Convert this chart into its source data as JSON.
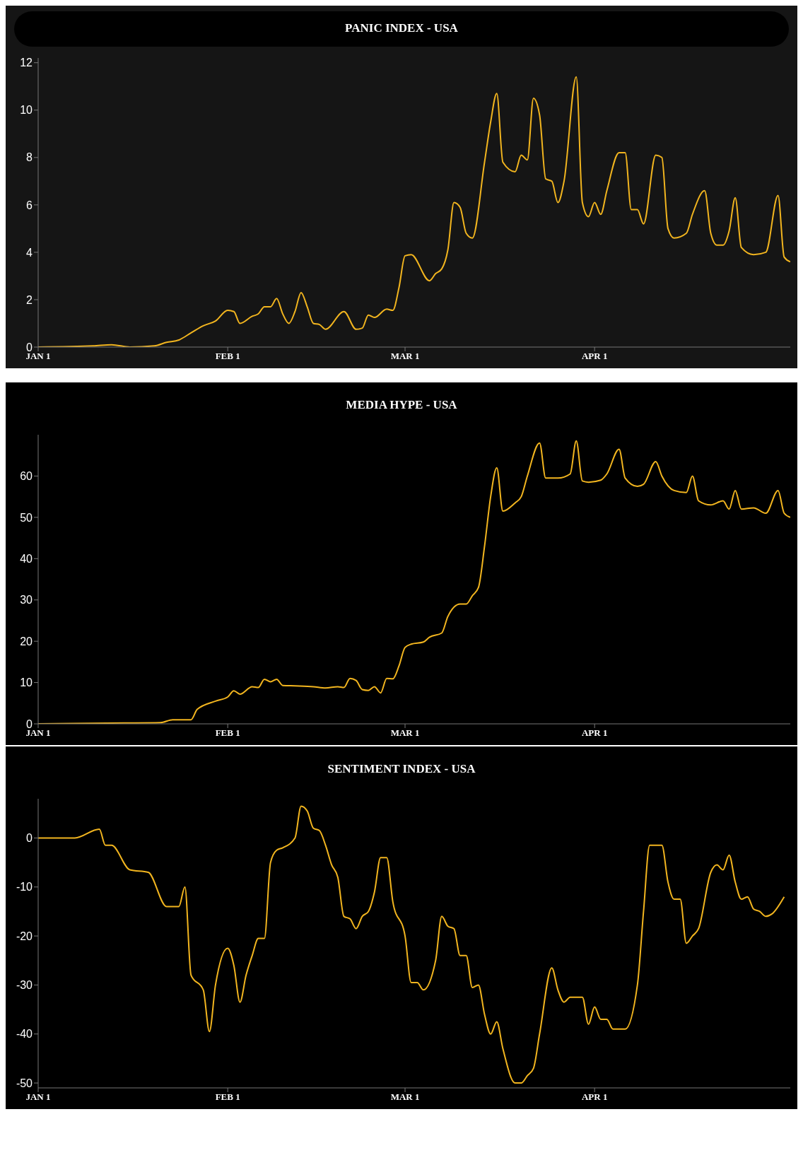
{
  "chart_data": [
    {
      "type": "line",
      "title": "PANIC INDEX - USA",
      "color": "#f2b51f",
      "xlim": [
        "--01-01",
        "--05-03"
      ],
      "ylim": [
        0,
        12.2
      ],
      "yticks": [
        0,
        2,
        4,
        6,
        8,
        10,
        12
      ],
      "xticks": [
        {
          "value": "--01-01",
          "label": "JAN 1"
        },
        {
          "value": "--02-01",
          "label": "FEB 1"
        },
        {
          "value": "--03-01",
          "label": "MAR 1"
        },
        {
          "value": "--04-01",
          "label": "APR 1"
        }
      ],
      "x": [
        "--01-01",
        "--01-10",
        "--01-13",
        "--01-16",
        "--01-20",
        "--01-22",
        "--01-24",
        "--01-26",
        "--01-28",
        "--01-30",
        "--02-01",
        "--02-02",
        "--02-03",
        "--02-05",
        "--02-06",
        "--02-07",
        "--02-08",
        "--02-09",
        "--02-10",
        "--02-11",
        "--02-12",
        "--02-13",
        "--02-14",
        "--02-15",
        "--02-16",
        "--02-17",
        "--02-20",
        "--02-22",
        "--02-23",
        "--02-24",
        "--02-25",
        "--02-27",
        "--02-28",
        "--02-29",
        "--03-01",
        "--03-02",
        "--03-05",
        "--03-06",
        "--03-07",
        "--03-08",
        "--03-09",
        "--03-10",
        "--03-11",
        "--03-12",
        "--03-14",
        "--03-15",
        "--03-16",
        "--03-17",
        "--03-19",
        "--03-20",
        "--03-21",
        "--03-22",
        "--03-23",
        "--03-24",
        "--03-25",
        "--03-26",
        "--03-27",
        "--03-29",
        "--03-30",
        "--03-31",
        "--04-01",
        "--04-02",
        "--04-03",
        "--04-05",
        "--04-06",
        "--04-07",
        "--04-08",
        "--04-09",
        "--04-11",
        "--04-12",
        "--04-13",
        "--04-14",
        "--04-16",
        "--04-17",
        "--04-19",
        "--04-20",
        "--04-21",
        "--04-22",
        "--04-23",
        "--04-24",
        "--04-25",
        "--04-27",
        "--04-29",
        "--05-01",
        "--05-02",
        "--05-03"
      ],
      "values": [
        0,
        0.05,
        0.1,
        0,
        0.05,
        0.2,
        0.3,
        0.6,
        0.9,
        1.1,
        1.55,
        1.5,
        1.0,
        1.3,
        1.4,
        1.7,
        1.7,
        2.05,
        1.4,
        1.0,
        1.5,
        2.3,
        1.7,
        1.0,
        0.95,
        0.75,
        1.5,
        0.75,
        0.8,
        1.35,
        1.25,
        1.6,
        1.55,
        2.5,
        3.85,
        3.9,
        2.8,
        3.1,
        3.3,
        4.1,
        6.1,
        5.9,
        4.8,
        4.6,
        7.8,
        9.5,
        10.7,
        7.8,
        7.4,
        8.1,
        7.9,
        10.5,
        9.8,
        7.1,
        7.0,
        6.1,
        7.0,
        11.4,
        6.1,
        5.5,
        6.1,
        5.6,
        6.6,
        8.2,
        8.2,
        5.8,
        5.8,
        5.2,
        8.1,
        8.0,
        5.0,
        4.6,
        4.8,
        5.6,
        6.6,
        4.8,
        4.3,
        4.3,
        4.9,
        6.3,
        4.2,
        3.9,
        4.0,
        6.4,
        3.8,
        3.6
      ]
    },
    {
      "type": "line",
      "title": "MEDIA HYPE - USA",
      "color": "#f2b51f",
      "xlim": [
        "--01-01",
        "--05-03"
      ],
      "ylim": [
        0,
        70
      ],
      "yticks": [
        0,
        10,
        20,
        30,
        40,
        50,
        60
      ],
      "xticks": [
        {
          "value": "--01-01",
          "label": "JAN 1"
        },
        {
          "value": "--02-01",
          "label": "FEB 1"
        },
        {
          "value": "--03-01",
          "label": "MAR 1"
        },
        {
          "value": "--04-01",
          "label": "APR 1"
        }
      ],
      "x": [
        "--01-01",
        "--01-15",
        "--01-21",
        "--01-23",
        "--01-26",
        "--01-27",
        "--01-30",
        "--02-01",
        "--02-02",
        "--02-03",
        "--02-05",
        "--02-06",
        "--02-07",
        "--02-08",
        "--02-09",
        "--02-10",
        "--02-12",
        "--02-15",
        "--02-17",
        "--02-19",
        "--02-20",
        "--02-21",
        "--02-22",
        "--02-23",
        "--02-24",
        "--02-25",
        "--02-26",
        "--02-27",
        "--02-28",
        "--02-29",
        "--03-01",
        "--03-02",
        "--03-04",
        "--03-05",
        "--03-07",
        "--03-08",
        "--03-10",
        "--03-11",
        "--03-12",
        "--03-13",
        "--03-14",
        "--03-15",
        "--03-16",
        "--03-17",
        "--03-19",
        "--03-20",
        "--03-21",
        "--03-23",
        "--03-24",
        "--03-26",
        "--03-28",
        "--03-29",
        "--03-30",
        "--03-31",
        "--04-02",
        "--04-03",
        "--04-05",
        "--04-06",
        "--04-08",
        "--04-09",
        "--04-11",
        "--04-12",
        "--04-14",
        "--04-16",
        "--04-17",
        "--04-18",
        "--04-20",
        "--04-22",
        "--04-23",
        "--04-24",
        "--04-25",
        "--04-27",
        "--04-29",
        "--05-01",
        "--05-02",
        "--05-03"
      ],
      "values": [
        0,
        0.2,
        0.3,
        1.0,
        1.0,
        3.5,
        5.5,
        6.5,
        8,
        7.2,
        9,
        8.8,
        10.8,
        10.2,
        10.8,
        9.3,
        9.2,
        9.0,
        8.7,
        9.0,
        8.8,
        11.0,
        10.5,
        8.3,
        8.1,
        9.0,
        7.5,
        11,
        10.9,
        14,
        18.5,
        19.3,
        19.8,
        21,
        22,
        26,
        29,
        29,
        31,
        33,
        43,
        55,
        62,
        51.5,
        53.5,
        55,
        60,
        68,
        59.5,
        59.5,
        60.5,
        68.5,
        58.8,
        58.5,
        59,
        60.5,
        66.5,
        59.5,
        57.5,
        58,
        63.5,
        60,
        56.5,
        56,
        60,
        54,
        53,
        54,
        52,
        56.5,
        52,
        52.3,
        51,
        56.5,
        51,
        50
      ]
    },
    {
      "type": "line",
      "title": "SENTIMENT INDEX - USA",
      "color": "#f2b51f",
      "xlim": [
        "--01-01",
        "--05-03"
      ],
      "ylim": [
        -51,
        8
      ],
      "yticks": [
        -50,
        -40,
        -30,
        -20,
        -10,
        0
      ],
      "xticks": [
        {
          "value": "--01-01",
          "label": "JAN 1"
        },
        {
          "value": "--02-01",
          "label": "FEB 1"
        },
        {
          "value": "--03-01",
          "label": "MAR 1"
        },
        {
          "value": "--04-01",
          "label": "APR 1"
        }
      ],
      "x": [
        "--01-01",
        "--01-07",
        "--01-11",
        "--01-12",
        "--01-13",
        "--01-16",
        "--01-19",
        "--01-22",
        "--01-24",
        "--01-25",
        "--01-26",
        "--01-28",
        "--01-29",
        "--01-30",
        "--02-01",
        "--02-02",
        "--02-03",
        "--02-04",
        "--02-05",
        "--02-06",
        "--02-07",
        "--02-08",
        "--02-09",
        "--02-10",
        "--02-12",
        "--02-13",
        "--02-14",
        "--02-15",
        "--02-16",
        "--02-17",
        "--02-18",
        "--02-19",
        "--02-20",
        "--02-21",
        "--02-22",
        "--02-23",
        "--02-24",
        "--02-25",
        "--02-26",
        "--02-27",
        "--02-28",
        "--03-01",
        "--03-02",
        "--03-03",
        "--03-04",
        "--03-06",
        "--03-07",
        "--03-08",
        "--03-09",
        "--03-10",
        "--03-11",
        "--03-12",
        "--03-13",
        "--03-14",
        "--03-15",
        "--03-16",
        "--03-17",
        "--03-19",
        "--03-20",
        "--03-21",
        "--03-22",
        "--03-23",
        "--03-25",
        "--03-26",
        "--03-27",
        "--03-28",
        "--03-30",
        "--03-31",
        "--04-01",
        "--04-02",
        "--04-03",
        "--04-04",
        "--04-06",
        "--04-08",
        "--04-09",
        "--04-10",
        "--04-12",
        "--04-13",
        "--04-14",
        "--04-15",
        "--04-16",
        "--04-17",
        "--04-18",
        "--04-20",
        "--04-21",
        "--04-22",
        "--04-23",
        "--04-24",
        "--04-25",
        "--04-26",
        "--04-27",
        "--04-28",
        "--04-29",
        "--04-30",
        "--05-02"
      ],
      "values": [
        0,
        0,
        1.8,
        -1.5,
        -1.5,
        -6.5,
        -7,
        -14,
        -14,
        -10,
        -28,
        -31,
        -39.5,
        -30,
        -22.5,
        -26,
        -33.5,
        -28,
        -24,
        -20.5,
        -20.5,
        -5,
        -2.5,
        -2,
        0,
        6.5,
        5.5,
        2,
        1.5,
        -1.5,
        -5.5,
        -8,
        -16,
        -16.5,
        -18.5,
        -16,
        -15,
        -11,
        -4,
        -4,
        -13,
        -20,
        -29.5,
        -29.5,
        -31,
        -25,
        -16,
        -18,
        -18.5,
        -24,
        -24,
        -30.5,
        -30,
        -36,
        -40,
        -37.5,
        -43,
        -50,
        -50,
        -48.5,
        -47,
        -40,
        -26.5,
        -31,
        -33.5,
        -32.5,
        -32.5,
        -38,
        -34.5,
        -37,
        -37,
        -39,
        -39,
        -30,
        -15,
        -1.5,
        -1.5,
        -9,
        -12.5,
        -12.5,
        -21.5,
        -20,
        -18.5,
        -7,
        -5.5,
        -6.5,
        -3.5,
        -9,
        -12.5,
        -12,
        -14.5,
        -15,
        -16,
        -15.5,
        -12
      ]
    }
  ]
}
